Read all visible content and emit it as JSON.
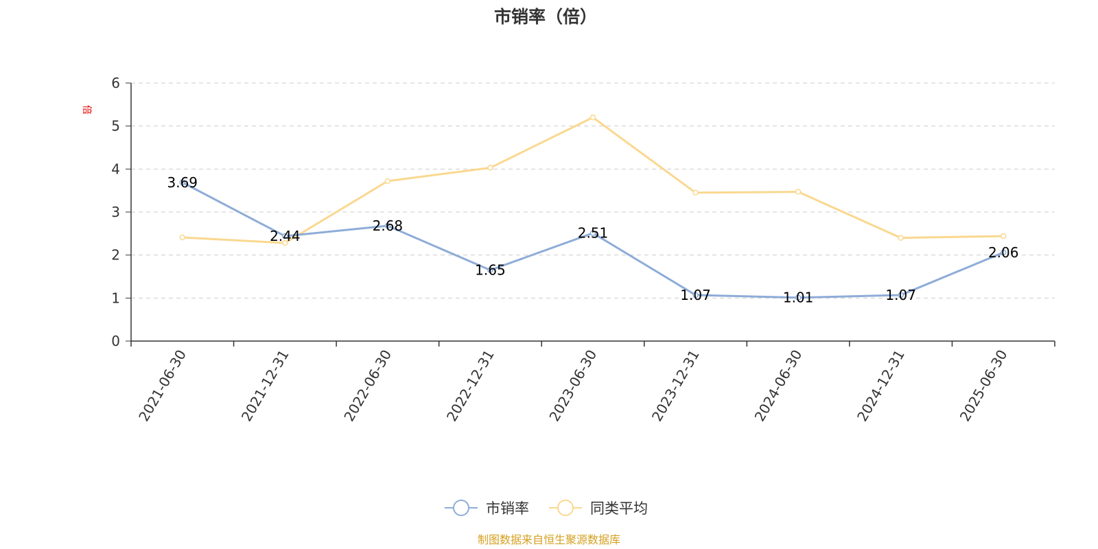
{
  "colors": {
    "series_ps": "#8eacd8",
    "series_avg": "#fad88f",
    "axis": "#333333",
    "grid": "#cccccc",
    "unit": "#e60000",
    "source": "#d4a020"
  },
  "chart_data": {
    "type": "line",
    "title": "市销率（倍）",
    "ylabel": "倍",
    "xlabel": "",
    "x": [
      "2021-06-30",
      "2021-12-31",
      "2022-06-30",
      "2022-12-31",
      "2023-06-30",
      "2023-12-31",
      "2024-06-30",
      "2024-12-31",
      "2025-06-30"
    ],
    "ylim": [
      0,
      6
    ],
    "yticks": [
      "0",
      "1",
      "2",
      "3",
      "4",
      "5",
      "6"
    ],
    "grid": true,
    "legend_position": "bottom-center",
    "series": [
      {
        "name": "市销率",
        "values": [
          3.69,
          2.44,
          2.68,
          1.65,
          2.51,
          1.07,
          1.01,
          1.07,
          2.06
        ],
        "labels": [
          "3.69",
          "2.44",
          "2.68",
          "1.65",
          "2.51",
          "1.07",
          "1.01",
          "1.07",
          "2.06"
        ]
      },
      {
        "name": "同类平均",
        "values": [
          2.41,
          2.28,
          3.72,
          4.03,
          5.2,
          3.45,
          3.47,
          2.4,
          2.44
        ]
      }
    ]
  },
  "source": "制图数据来自恒生聚源数据库"
}
